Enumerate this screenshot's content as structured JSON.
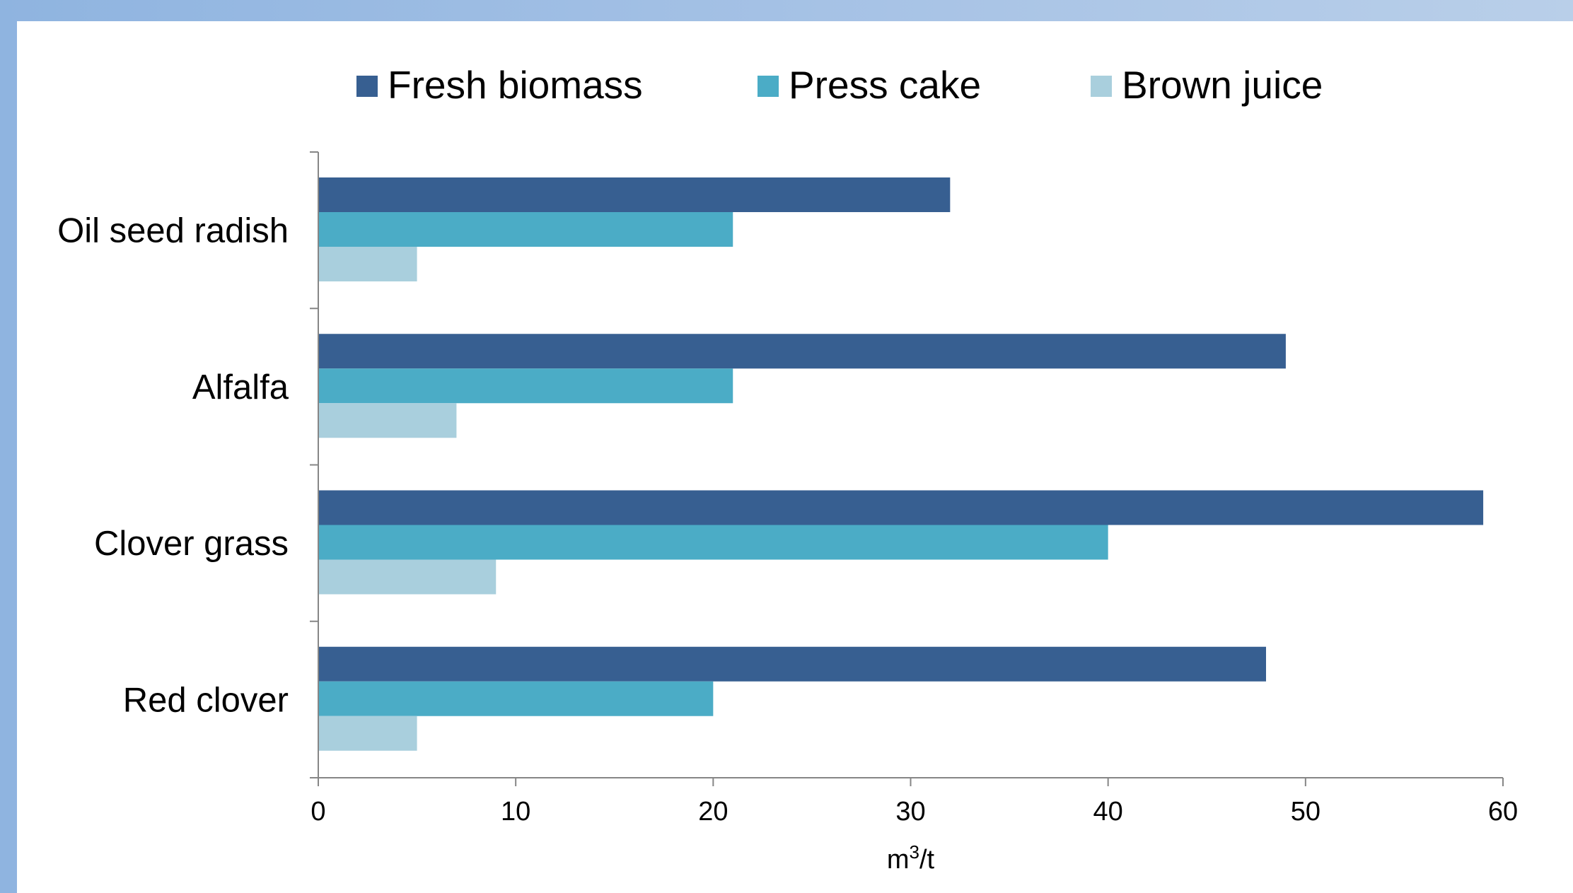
{
  "chart_data": {
    "type": "bar",
    "orientation": "horizontal",
    "categories": [
      "Oil seed radish",
      "Alfalfa",
      "Clover grass",
      "Red clover"
    ],
    "series": [
      {
        "name": "Fresh biomass",
        "color": "#375f91",
        "values": [
          32,
          49,
          59,
          48
        ]
      },
      {
        "name": "Press cake",
        "color": "#4bacc6",
        "values": [
          21,
          21,
          40,
          20
        ]
      },
      {
        "name": "Brown juice",
        "color": "#a9cfdd",
        "values": [
          5,
          7,
          9,
          5
        ]
      }
    ],
    "xlim": [
      0,
      60
    ],
    "xticks": [
      "0",
      "10",
      "20",
      "30",
      "40",
      "50",
      "60"
    ],
    "xlabel_base": "m",
    "xlabel_sup": "3",
    "xlabel_suffix": "/t",
    "legend_position": "top",
    "grid": false
  }
}
